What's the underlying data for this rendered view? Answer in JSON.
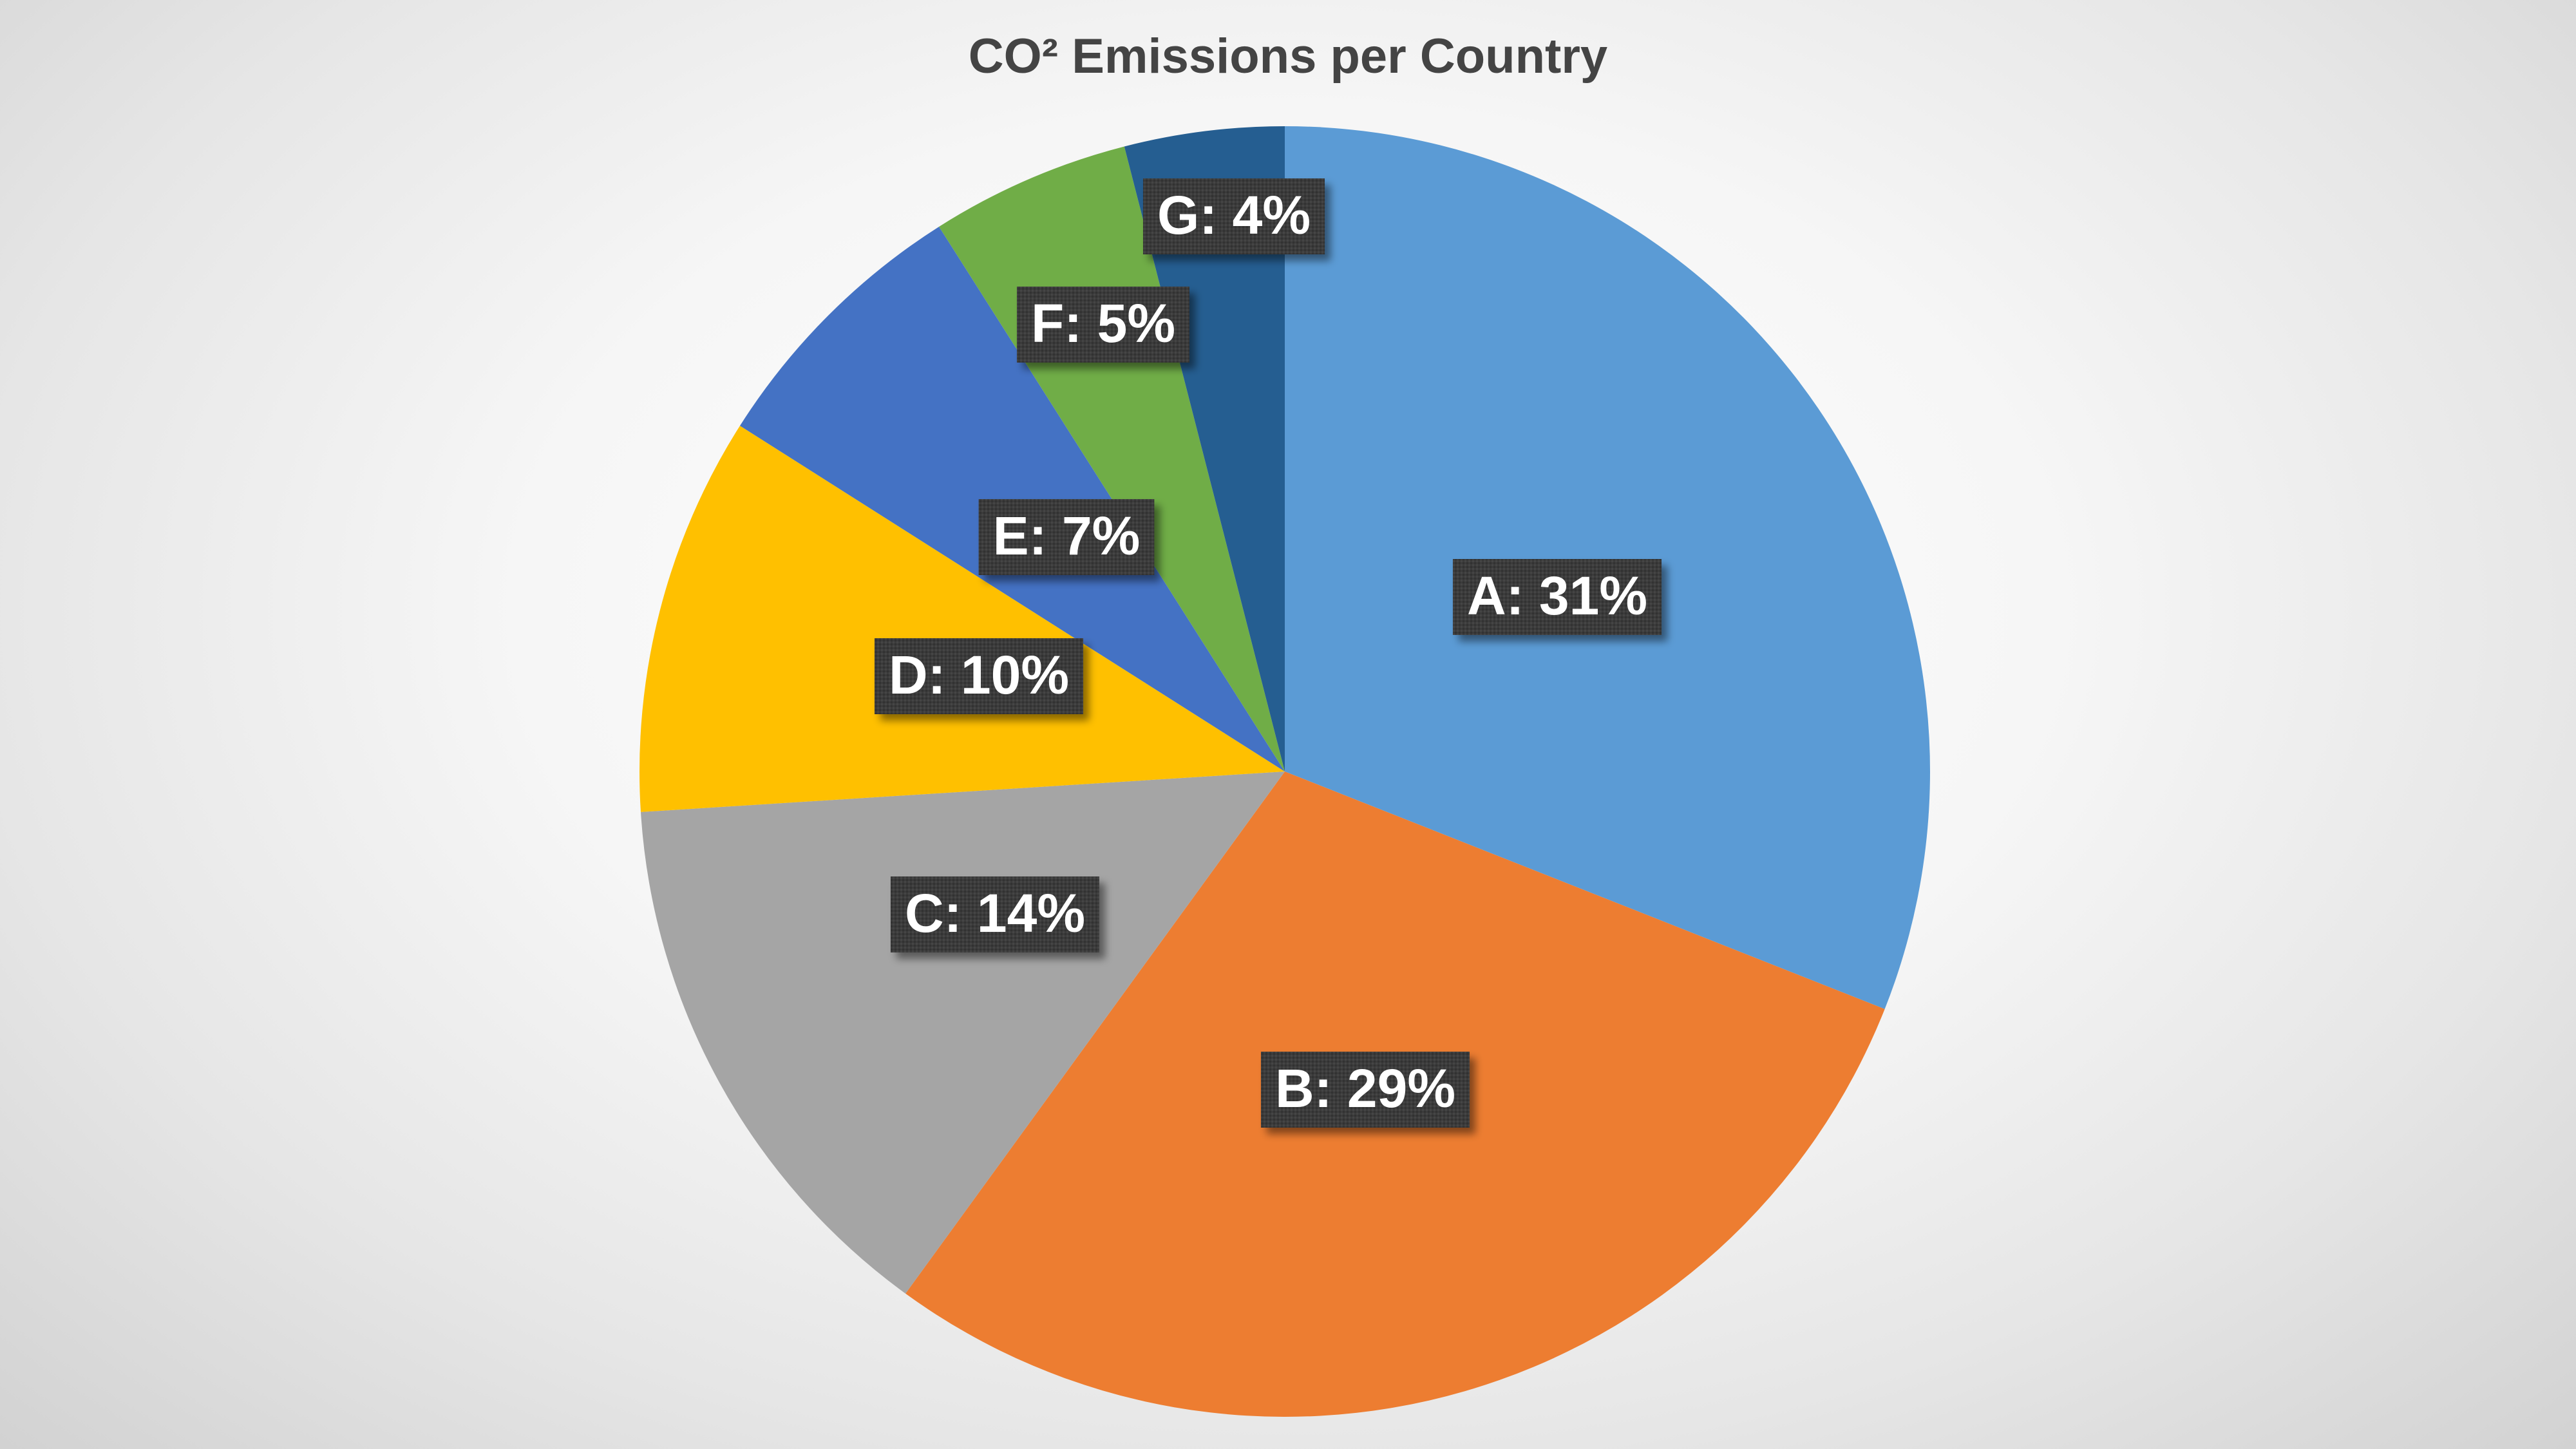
{
  "chart_data": {
    "type": "pie",
    "title": "CO² Emissions per Country",
    "categories": [
      "A",
      "B",
      "C",
      "D",
      "E",
      "F",
      "G"
    ],
    "values": [
      31,
      29,
      14,
      10,
      7,
      5,
      4
    ],
    "labels": [
      "A: 31%",
      "B: 29%",
      "C: 14%",
      "D: 10%",
      "E: 7%",
      "F: 5%",
      "G: 4%"
    ],
    "colors": [
      "#5B9BD5",
      "#ED7D31",
      "#A5A5A5",
      "#FFC000",
      "#4472C4",
      "#70AD47",
      "#255E91"
    ],
    "start_angle": "12 o'clock",
    "direction": "clockwise",
    "legend": "none"
  }
}
